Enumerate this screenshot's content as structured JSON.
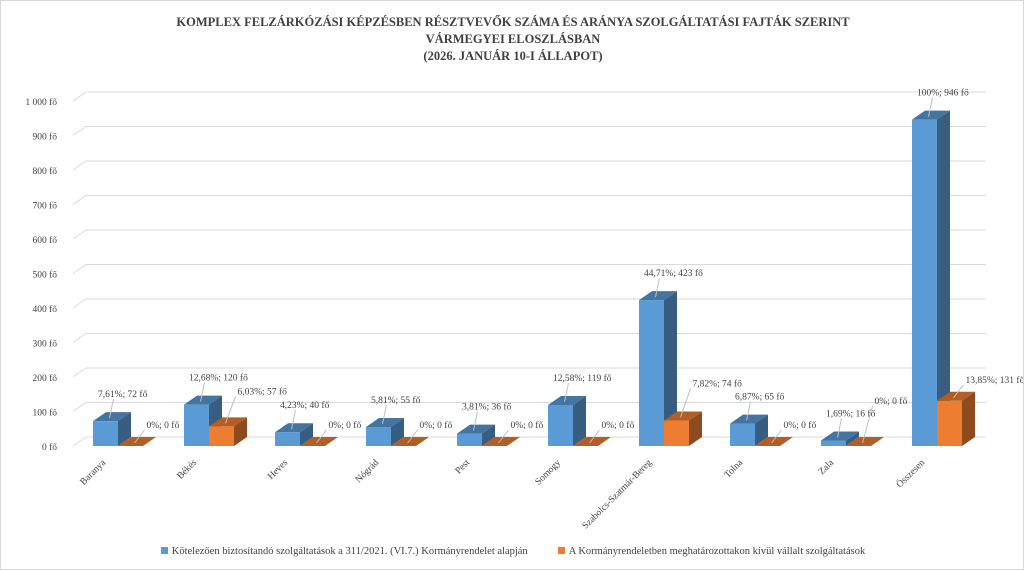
{
  "chart_data": {
    "type": "bar",
    "title_lines": [
      "KOMPLEX FELZÁRKÓZÁSI KÉPZÉSBEN RÉSZTVEVŐK SZÁMA ÉS ARÁNYA SZOLGÁLTATÁSI FAJTÁK SZERINT",
      "VÁRMEGYEI ELOSZLÁSBAN",
      "(2026. JANUÁR 10-I ÁLLAPOT)"
    ],
    "categories": [
      "Baranya",
      "Békés",
      "Heves",
      "Nógrád",
      "Pest",
      "Somogy",
      "Szabolcs-Szatmár-Bereg",
      "Tolna",
      "Zala",
      "Összesen"
    ],
    "ylim": [
      0,
      1000
    ],
    "yticks": [
      "0 fő",
      "100 fő",
      "200 fő",
      "300 fő",
      "400 fő",
      "500 fő",
      "600 fő",
      "700 fő",
      "800 fő",
      "900 fő",
      "1 000 fő"
    ],
    "legend_position": "bottom",
    "series": [
      {
        "name": "Kötelezően biztosítandó szolgáltatások a 311/2021. (VI.7.) Kormányrendelet alapján",
        "color": "#5b9bd5",
        "values": [
          72,
          120,
          40,
          55,
          36,
          119,
          423,
          65,
          16,
          946
        ],
        "labels": [
          "7,61%; 72 fő",
          "12,68%; 120 fő",
          "4,23%; 40 fő",
          "5,81%; 55 fő",
          "3,81%; 36 fő",
          "12,58%; 119 fő",
          "44,71%; 423 fő",
          "6,87%; 65 fő",
          "1,69%; 16 fő",
          "100%; 946 fő"
        ]
      },
      {
        "name": "A Kormányrendeletben meghatározottakon kívül vállalt szolgáltatások",
        "color": "#ed7d31",
        "values": [
          0,
          57,
          0,
          0,
          0,
          0,
          74,
          0,
          0,
          131
        ],
        "labels": [
          "0%; 0 fő",
          "6,03%; 57 fő",
          "0%; 0 fő",
          "0%; 0 fő",
          "0%; 0 fő",
          "0%; 0 fő",
          "7,82%; 74 fő",
          "0%; 0 fő",
          "0%; 0 fő",
          "13,85%; 131 fő"
        ]
      }
    ]
  }
}
